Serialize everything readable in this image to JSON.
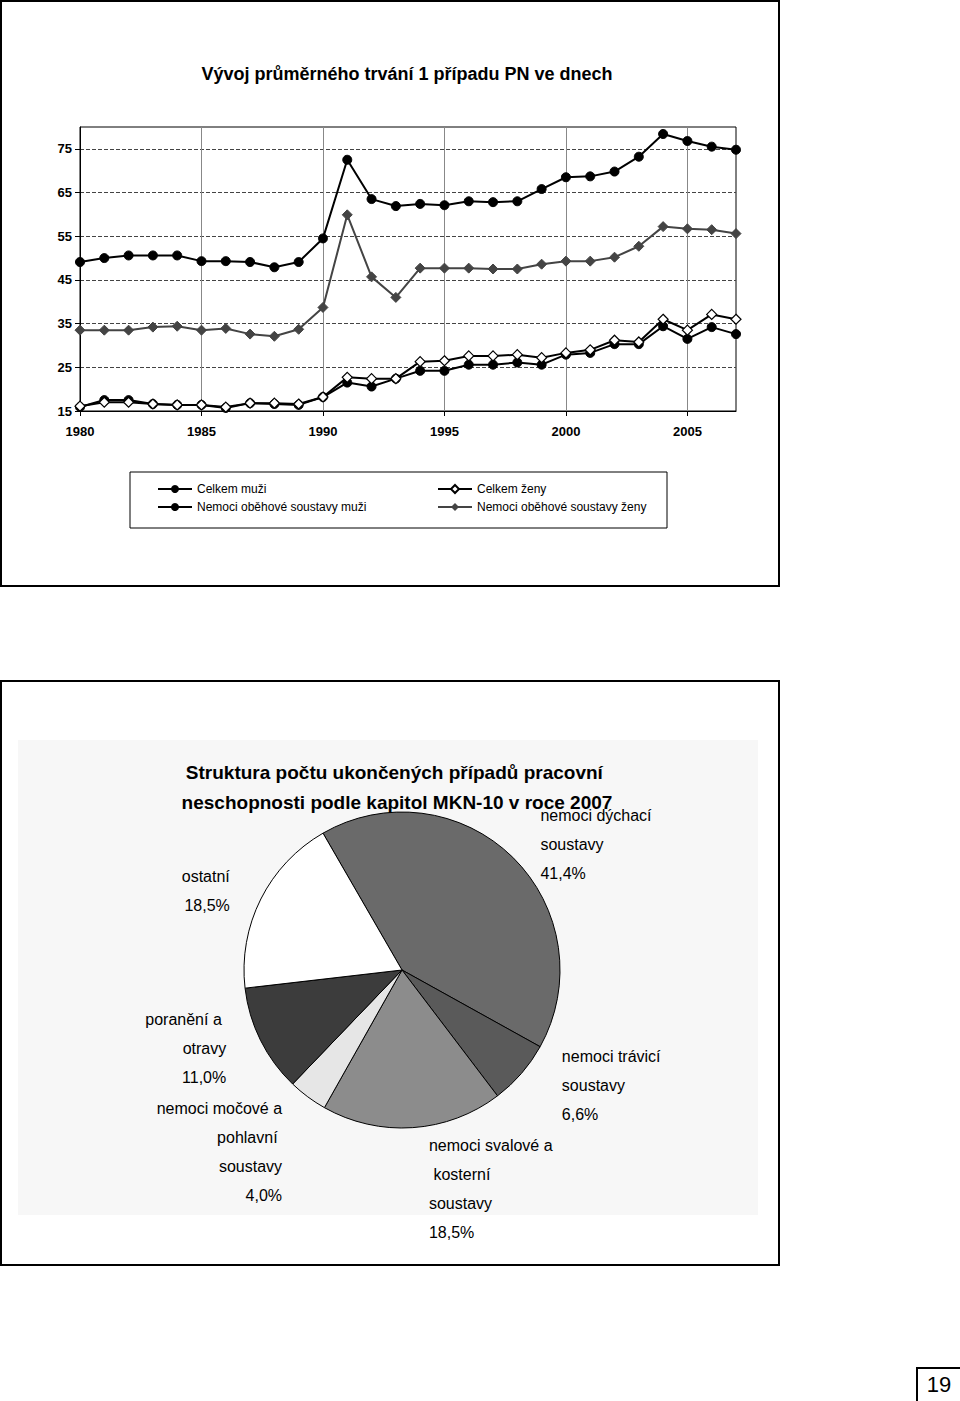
{
  "chart_data": [
    {
      "type": "line",
      "title": "Vývoj průměrného trvání 1 případu PN ve dnech",
      "x": [
        1980,
        1981,
        1982,
        1983,
        1984,
        1985,
        1986,
        1987,
        1988,
        1989,
        1990,
        1991,
        1992,
        1993,
        1994,
        1995,
        1996,
        1997,
        1998,
        1999,
        2000,
        2001,
        2002,
        2003,
        2004,
        2005,
        2006,
        2007
      ],
      "xlim": [
        1980,
        2007
      ],
      "xticks": [
        1980,
        1985,
        1990,
        1995,
        2000,
        2005
      ],
      "ylim": [
        15,
        80
      ],
      "yticks": [
        15,
        25,
        35,
        45,
        55,
        65,
        75
      ],
      "grid": true,
      "legend": "bottom",
      "series": [
        {
          "name": "Celkem muži",
          "color": "#000000",
          "marker": "circle",
          "line_style": "solid",
          "values": [
            15.9,
            17.5,
            17.5,
            16.6,
            16.4,
            16.4,
            15.7,
            16.8,
            16.6,
            16.4,
            18.2,
            21.5,
            20.6,
            22.4,
            24.2,
            24.2,
            25.6,
            25.6,
            26.1,
            25.6,
            27.9,
            28.3,
            30.3,
            30.3,
            34.4,
            31.5,
            34.2,
            32.6
          ]
        },
        {
          "name": "Nemoci oběhové soustavy muži",
          "color": "#000000",
          "marker": "circle",
          "line_style": "solid",
          "values": [
            49.1,
            50.0,
            50.6,
            50.6,
            50.6,
            49.3,
            49.3,
            49.1,
            47.9,
            49.1,
            54.5,
            72.5,
            63.5,
            61.9,
            62.4,
            62.1,
            63.0,
            62.8,
            63.0,
            65.8,
            68.5,
            68.7,
            69.8,
            73.2,
            78.4,
            76.8,
            75.5,
            74.8
          ]
        },
        {
          "name": "Celkem ženy",
          "color": "#000000",
          "marker": "diamond_open",
          "line_style": "solid",
          "values": [
            16.1,
            17.0,
            17.0,
            16.6,
            16.4,
            16.4,
            15.9,
            16.8,
            16.8,
            16.6,
            18.2,
            22.7,
            22.4,
            22.4,
            26.3,
            26.5,
            27.6,
            27.6,
            27.9,
            27.2,
            28.3,
            29.0,
            31.2,
            30.8,
            36.0,
            33.5,
            37.1,
            36.0
          ]
        },
        {
          "name": "Nemoci oběhové soustavy ženy",
          "color": "#444444",
          "marker": "diamond",
          "line_style": "solid",
          "values": [
            33.5,
            33.5,
            33.5,
            34.2,
            34.4,
            33.5,
            33.9,
            32.6,
            32.1,
            33.7,
            38.7,
            59.9,
            45.7,
            41.0,
            47.7,
            47.7,
            47.7,
            47.5,
            47.5,
            48.6,
            49.3,
            49.3,
            50.2,
            52.7,
            57.2,
            56.7,
            56.5,
            55.6
          ]
        }
      ]
    },
    {
      "type": "pie",
      "title": "Struktura počtu ukončených případů pracovní neschopnosti podle kapitol MKN-10 v roce 2007",
      "categories": [
        "nemoci dýchací soustavy",
        "nemoci trávicí soustavy",
        "nemoci svalové a kosterní soustavy",
        "nemoci močové a pohlavní soustavy",
        "poranění a otravy",
        "ostatní"
      ],
      "values": [
        41.4,
        6.6,
        18.5,
        4.0,
        11.0,
        18.5
      ],
      "value_labels": [
        "41,4%",
        "6,6%",
        "18,5%",
        "4,0%",
        "11,0%",
        "18,5%"
      ],
      "colors": [
        "#6a6a6a",
        "#5a5a5a",
        "#8c8c8c",
        "#e6e6e6",
        "#3c3c3c",
        "#ffffff"
      ]
    }
  ],
  "page_number": 19
}
